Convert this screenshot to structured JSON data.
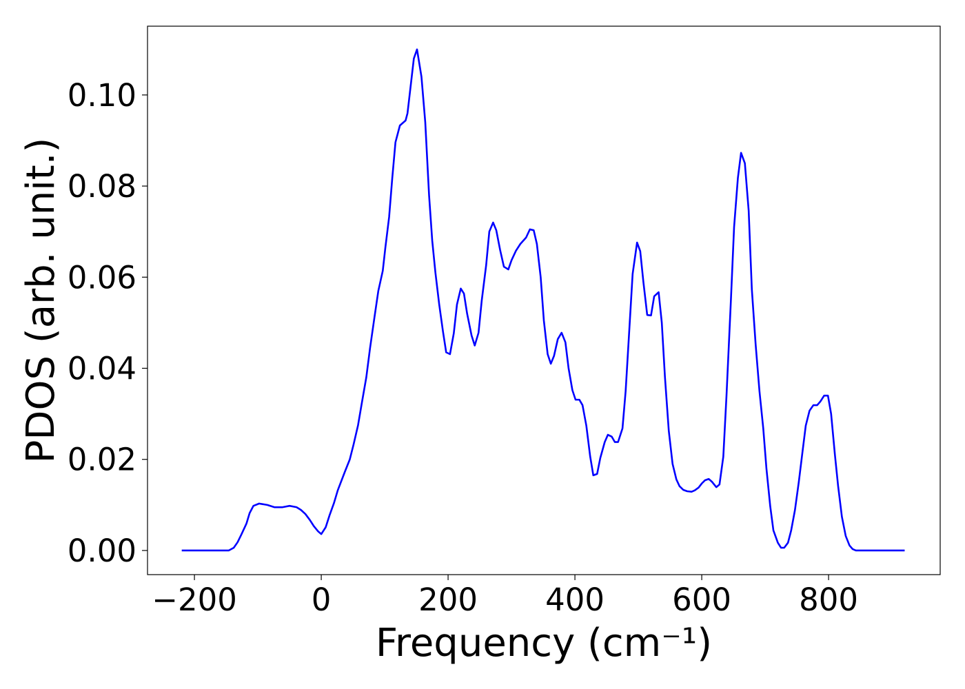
{
  "chart_data": {
    "type": "line",
    "xlabel": "Frequency (cm⁻¹)",
    "ylabel": "PDOS (arb. unit.)",
    "color": "#0000ff",
    "x": [
      -220,
      -146,
      -138,
      -132,
      -126,
      -118,
      -113,
      -107,
      -98,
      -85,
      -74,
      -61,
      -50,
      -39,
      -32,
      -25,
      -18,
      -12,
      -5,
      0,
      7,
      13,
      20,
      26,
      37,
      45,
      51,
      58,
      64,
      71,
      77,
      84,
      90,
      97,
      101,
      107,
      112,
      117,
      124,
      133,
      136,
      146,
      151,
      158,
      164,
      170,
      175,
      180,
      186,
      192,
      197,
      203,
      209,
      214,
      220,
      225,
      230,
      237,
      242,
      248,
      253,
      260,
      265,
      271,
      276,
      282,
      288,
      295,
      300,
      307,
      314,
      323,
      329,
      335,
      340,
      346,
      351,
      357,
      362,
      367,
      373,
      379,
      385,
      390,
      396,
      401,
      407,
      412,
      418,
      424,
      429,
      435,
      440,
      447,
      452,
      458,
      463,
      468,
      475,
      480,
      486,
      491,
      498,
      503,
      508,
      514,
      520,
      525,
      532,
      537,
      542,
      548,
      554,
      560,
      565,
      571,
      577,
      584,
      589,
      595,
      600,
      605,
      611,
      616,
      623,
      628,
      634,
      639,
      646,
      651,
      657,
      662,
      668,
      674,
      679,
      685,
      691,
      697,
      702,
      708,
      713,
      720,
      725,
      730,
      736,
      741,
      747,
      753,
      759,
      764,
      770,
      776,
      782,
      787,
      793,
      799,
      804,
      810,
      815,
      821,
      827,
      833,
      838,
      843,
      920
    ],
    "values": [
      0,
      0,
      0.0006,
      0.0018,
      0.0035,
      0.0059,
      0.0082,
      0.0098,
      0.0103,
      0.01,
      0.0095,
      0.0095,
      0.0098,
      0.0095,
      0.0089,
      0.008,
      0.0067,
      0.0054,
      0.0042,
      0.0036,
      0.0051,
      0.0077,
      0.0104,
      0.0132,
      0.0172,
      0.02,
      0.0233,
      0.0275,
      0.0324,
      0.038,
      0.0445,
      0.0513,
      0.057,
      0.0614,
      0.0664,
      0.0732,
      0.0818,
      0.0896,
      0.0933,
      0.0944,
      0.096,
      0.108,
      0.11,
      0.104,
      0.094,
      0.078,
      0.068,
      0.061,
      0.054,
      0.048,
      0.0435,
      0.0431,
      0.0477,
      0.054,
      0.0575,
      0.0564,
      0.052,
      0.0472,
      0.045,
      0.0478,
      0.0548,
      0.0626,
      0.07,
      0.072,
      0.0703,
      0.066,
      0.0623,
      0.0617,
      0.0637,
      0.0658,
      0.0673,
      0.0687,
      0.0705,
      0.0703,
      0.0673,
      0.06,
      0.0505,
      0.0431,
      0.041,
      0.0427,
      0.0464,
      0.0478,
      0.0457,
      0.04,
      0.0352,
      0.0331,
      0.0331,
      0.0319,
      0.0274,
      0.0207,
      0.0165,
      0.0168,
      0.0203,
      0.0238,
      0.0254,
      0.025,
      0.0238,
      0.0238,
      0.0268,
      0.035,
      0.049,
      0.0607,
      0.0676,
      0.0657,
      0.0589,
      0.0517,
      0.0516,
      0.0558,
      0.0567,
      0.05,
      0.038,
      0.0263,
      0.019,
      0.0156,
      0.0141,
      0.0133,
      0.013,
      0.0129,
      0.0132,
      0.0138,
      0.0147,
      0.0154,
      0.0157,
      0.0151,
      0.0139,
      0.0145,
      0.0206,
      0.0339,
      0.055,
      0.071,
      0.0818,
      0.0873,
      0.085,
      0.0746,
      0.0573,
      0.0452,
      0.035,
      0.0268,
      0.018,
      0.0097,
      0.0044,
      0.0017,
      0.0006,
      0.0006,
      0.0017,
      0.0044,
      0.0089,
      0.015,
      0.0218,
      0.0274,
      0.0307,
      0.0319,
      0.0319,
      0.0327,
      0.034,
      0.034,
      0.03,
      0.021,
      0.0142,
      0.0074,
      0.0032,
      0.0011,
      0.0003,
      0,
      0
    ],
    "xlim": [
      -274,
      976
    ],
    "ylim": [
      -0.0053,
      0.1151
    ],
    "xticks": [
      {
        "value": -200,
        "label": "−200"
      },
      0,
      200,
      400,
      600,
      800
    ],
    "yticks": [
      {
        "value": 0,
        "label": "0.00"
      },
      {
        "value": 0.02,
        "label": "0.02"
      },
      {
        "value": 0.04,
        "label": "0.04"
      },
      {
        "value": 0.06,
        "label": "0.06"
      },
      {
        "value": 0.08,
        "label": "0.08"
      },
      {
        "value": 0.1,
        "label": "0.10"
      }
    ],
    "grid": false
  }
}
